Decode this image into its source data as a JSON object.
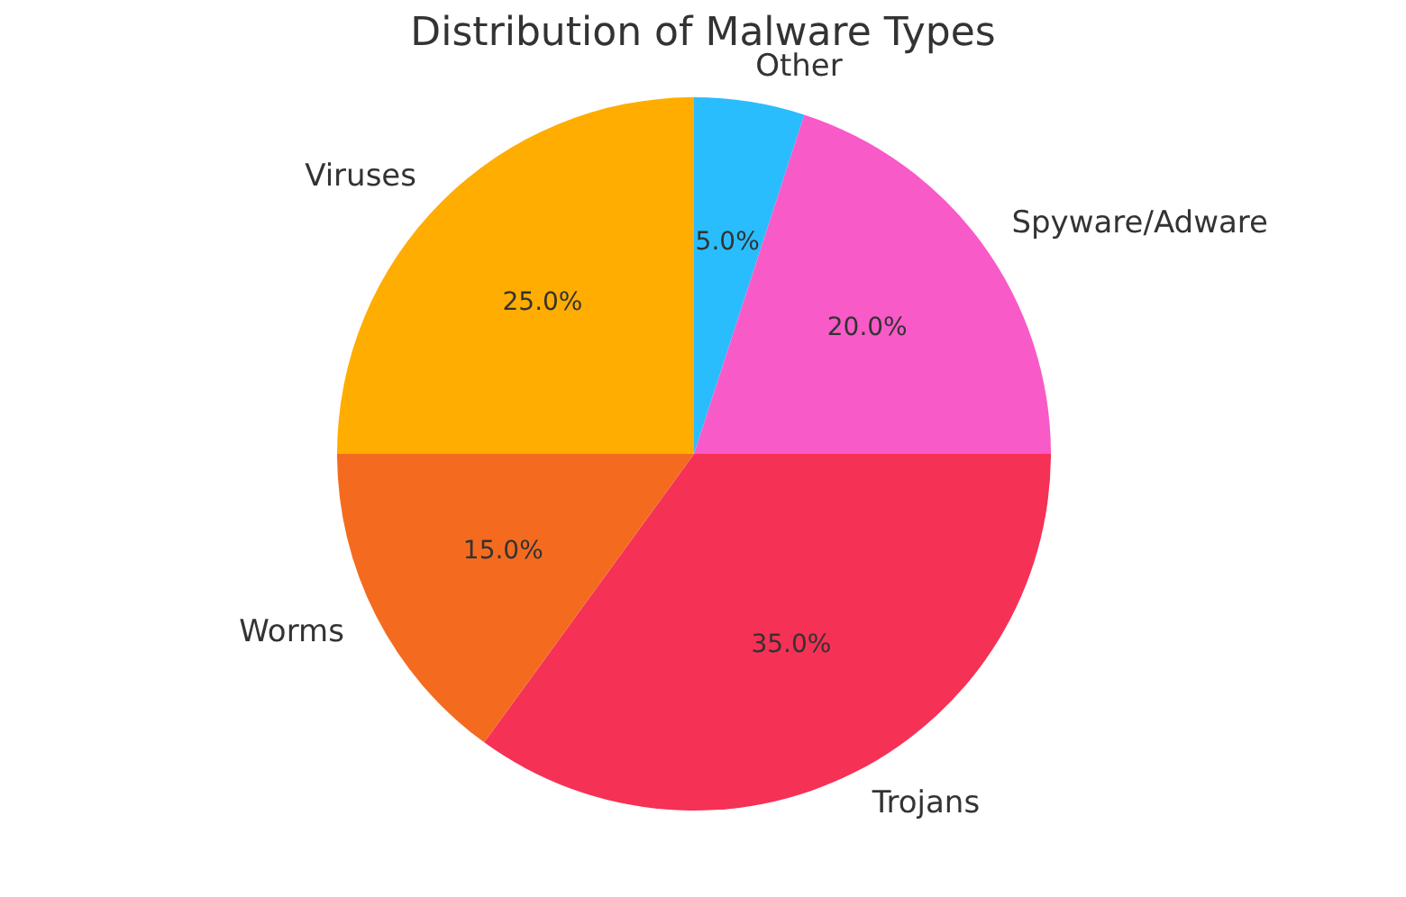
{
  "chart_data": {
    "type": "pie",
    "title": "Distribution of Malware Types",
    "categories": [
      "Other",
      "Spyware/Adware",
      "Trojans",
      "Worms",
      "Viruses"
    ],
    "values": [
      5,
      20,
      35,
      15,
      25
    ],
    "colors": [
      "#29bdfd",
      "#f85ac8",
      "#f53155",
      "#f46b1f",
      "#ffad00"
    ],
    "value_labels": [
      "5.0%",
      "20.0%",
      "35.0%",
      "15.0%",
      "25.0%"
    ]
  }
}
